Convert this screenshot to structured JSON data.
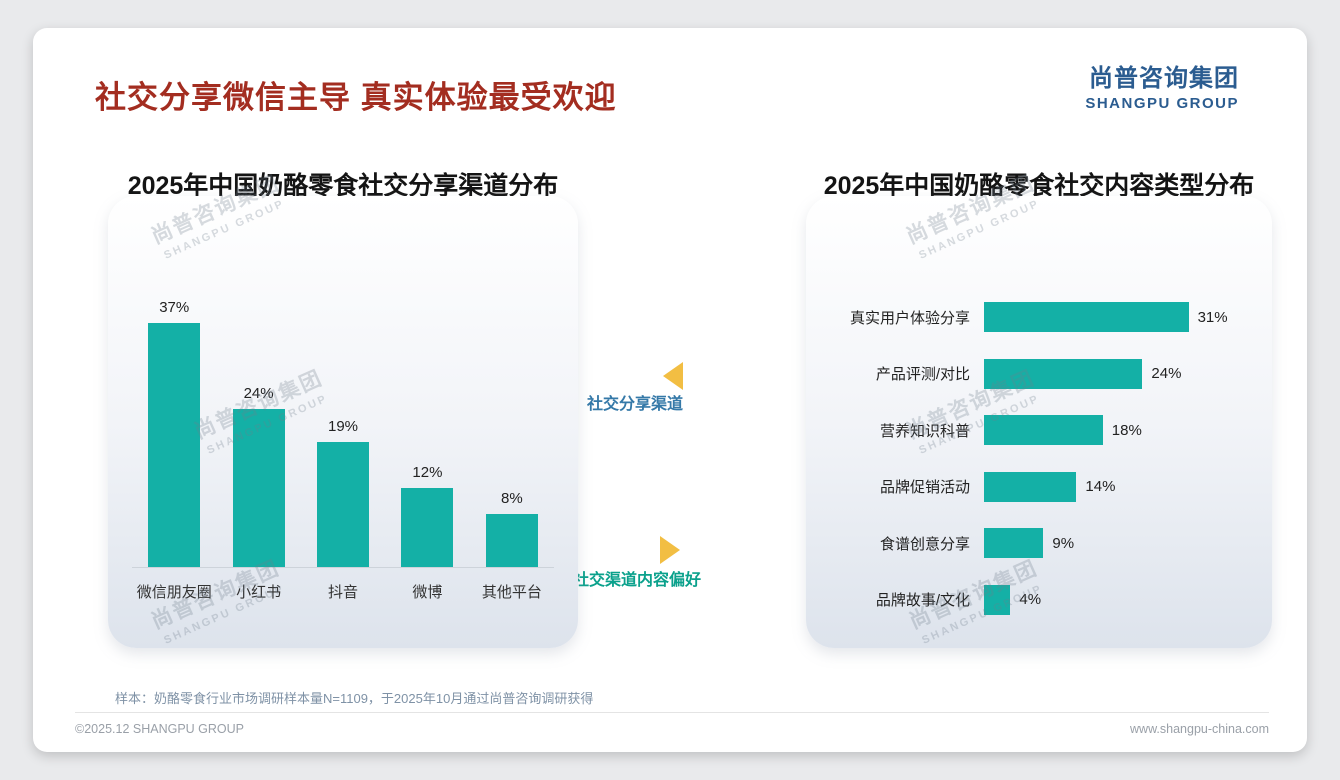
{
  "header": {
    "title": "社交分享微信主导 真实体验最受欢迎",
    "logo_cn": "尚普咨询集团",
    "logo_en": "SHANGPU GROUP"
  },
  "watermark": {
    "line1": "尚普咨询集团",
    "line2": "SHANGPU GROUP"
  },
  "annotations": {
    "left_label": "社交分享渠道",
    "right_label": "社交渠道内容偏好"
  },
  "chart_data": [
    {
      "type": "bar",
      "orientation": "vertical",
      "title": "2025年中国奶酪零食社交分享渠道分布",
      "categories": [
        "微信朋友圈",
        "小红书",
        "抖音",
        "微博",
        "其他平台"
      ],
      "values": [
        37,
        24,
        19,
        12,
        8
      ],
      "unit": "%",
      "bar_color": "#14b0a6",
      "ylim": [
        0,
        40
      ],
      "grid": false,
      "legend": "none"
    },
    {
      "type": "bar",
      "orientation": "horizontal",
      "title": "2025年中国奶酪零食社交内容类型分布",
      "categories": [
        "真实用户体验分享",
        "产品评测/对比",
        "营养知识科普",
        "品牌促销活动",
        "食谱创意分享",
        "品牌故事/文化"
      ],
      "values": [
        31,
        24,
        18,
        14,
        9,
        4
      ],
      "unit": "%",
      "bar_color": "#14b0a6",
      "xlim": [
        0,
        35
      ],
      "grid": false,
      "legend": "none"
    }
  ],
  "footnote": "样本：奶酪零食行业市场调研样本量N=1109，于2025年10月通过尚普咨询调研获得",
  "footer": {
    "left": "©2025.12 SHANGPU GROUP",
    "right": "www.shangpu-china.com"
  },
  "colors": {
    "accent_teal": "#14b0a6",
    "title_red": "#a32d20",
    "logo_blue": "#2b5c90",
    "triangle_gold": "#f2be43",
    "annotation_blue": "#3579a8",
    "annotation_teal": "#0ba18c"
  }
}
